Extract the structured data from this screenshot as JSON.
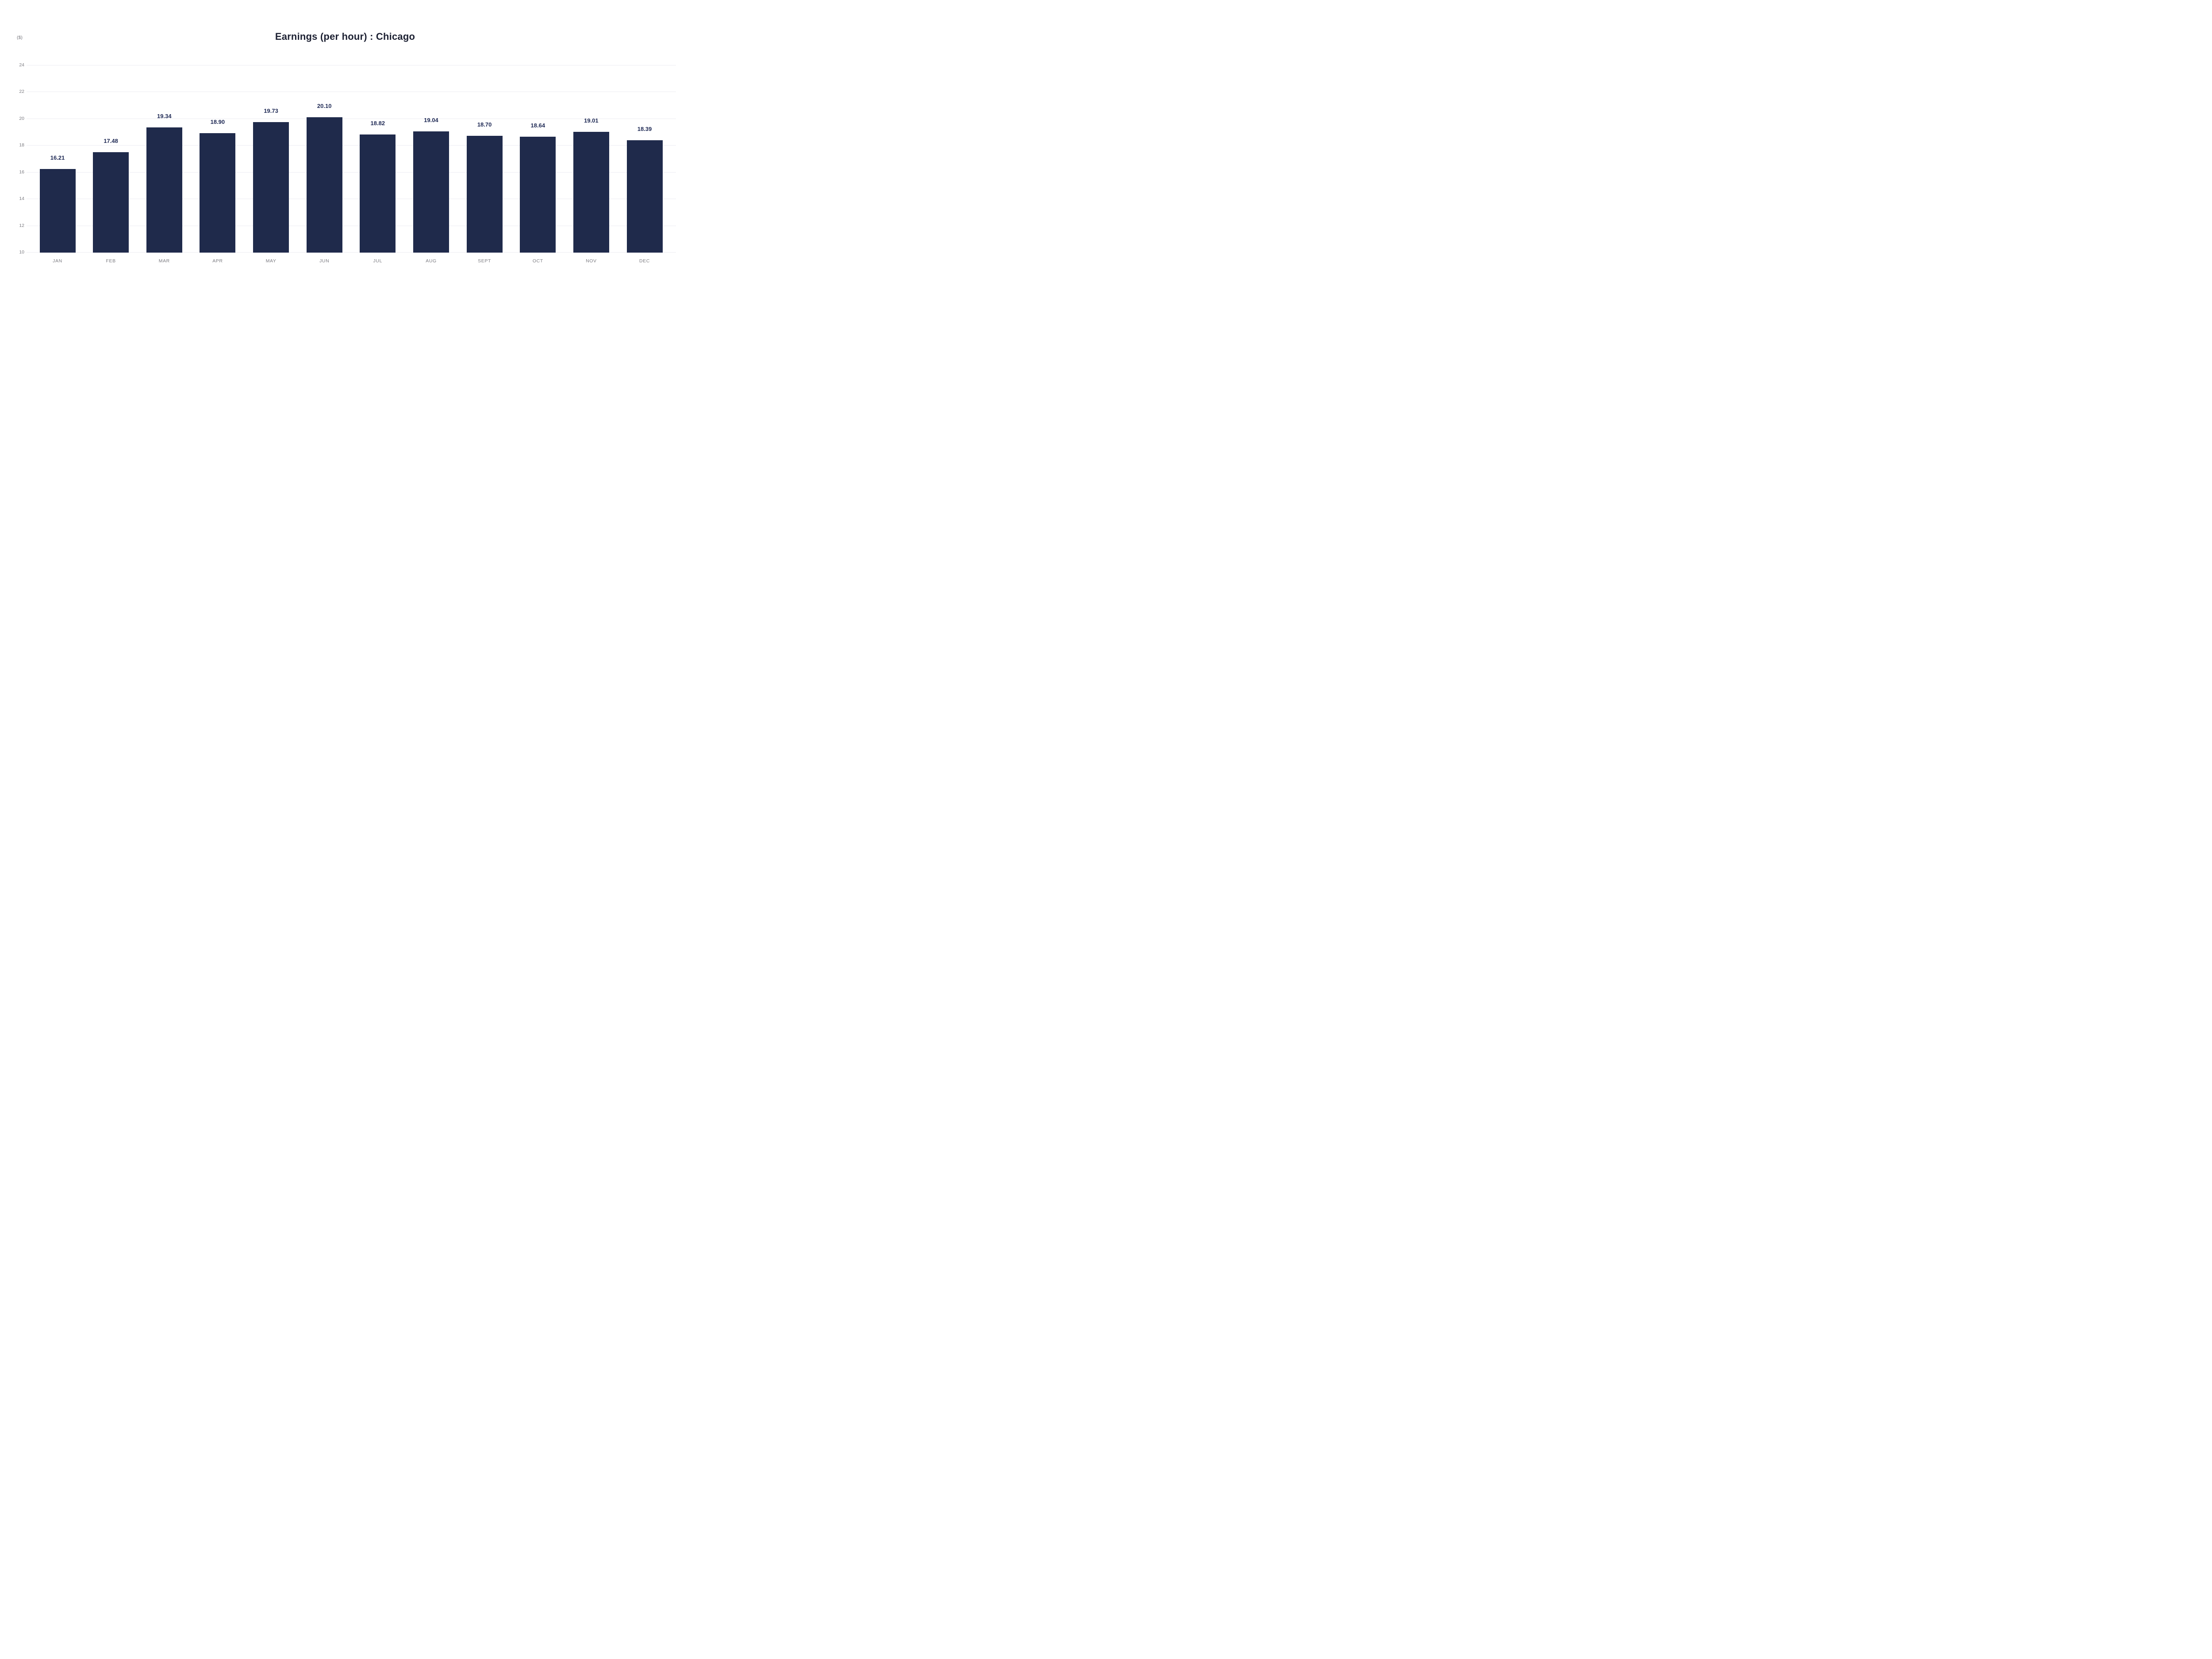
{
  "chart": {
    "title": "Earnings (per hour) : Chicago",
    "y_axis_unit": "($)",
    "y_tick_labels": [
      "24",
      "22",
      "20",
      "18",
      "16",
      "14",
      "12",
      "10"
    ],
    "value_labels": [
      "16.21",
      "17.48",
      "19.34",
      "18.90",
      "19.73",
      "20.10",
      "18.82",
      "19.04",
      "18.70",
      "18.64",
      "19.01",
      "18.39"
    ]
  },
  "chart_data": {
    "type": "bar",
    "title": "Earnings (per hour) : Chicago",
    "xlabel": "",
    "ylabel": "($)",
    "categories": [
      "JAN",
      "FEB",
      "MAR",
      "APR",
      "MAY",
      "JUN",
      "JUL",
      "AUG",
      "SEPT",
      "OCT",
      "NOV",
      "DEC"
    ],
    "values": [
      16.21,
      17.48,
      19.34,
      18.9,
      19.73,
      20.1,
      18.82,
      19.04,
      18.7,
      18.64,
      19.01,
      18.39
    ],
    "ylim": [
      10,
      24
    ],
    "ytick_step": 2,
    "grid": "horizontal-only",
    "legend_position": "none",
    "value_labels_shown": true
  },
  "colors": {
    "background": "#ffffff",
    "bar": "#1f2a4b",
    "value_label": "#1f2a55",
    "axis_text": "#7a7a80",
    "gridline": "#ececf2",
    "title": "#1d2133"
  }
}
